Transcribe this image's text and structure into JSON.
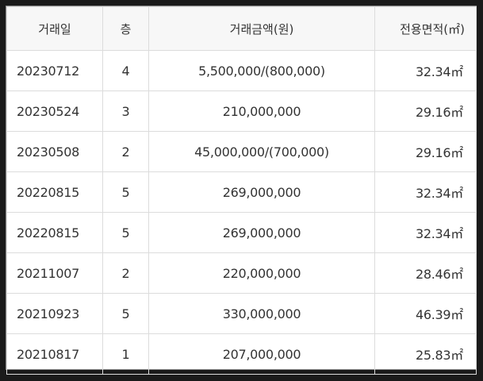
{
  "table": {
    "headers": {
      "date": "거래일",
      "floor": "층",
      "price": "거래금액(원)",
      "area": "전용면적(㎡)"
    },
    "rows": [
      {
        "date": "20230712",
        "floor": "4",
        "price": "5,500,000/(800,000)",
        "area": "32.34㎡"
      },
      {
        "date": "20230524",
        "floor": "3",
        "price": "210,000,000",
        "area": "29.16㎡"
      },
      {
        "date": "20230508",
        "floor": "2",
        "price": "45,000,000/(700,000)",
        "area": "29.16㎡"
      },
      {
        "date": "20220815",
        "floor": "5",
        "price": "269,000,000",
        "area": "32.34㎡"
      },
      {
        "date": "20220815",
        "floor": "5",
        "price": "269,000,000",
        "area": "32.34㎡"
      },
      {
        "date": "20211007",
        "floor": "2",
        "price": "220,000,000",
        "area": "28.46㎡"
      },
      {
        "date": "20210923",
        "floor": "5",
        "price": "330,000,000",
        "area": "46.39㎡"
      },
      {
        "date": "20210817",
        "floor": "1",
        "price": "207,000,000",
        "area": "25.83㎡"
      }
    ]
  },
  "colors": {
    "header_bg": "#f7f7f7",
    "border": "#dcdcdc",
    "text": "#333333",
    "outer_bg": "#1a1a1a"
  }
}
